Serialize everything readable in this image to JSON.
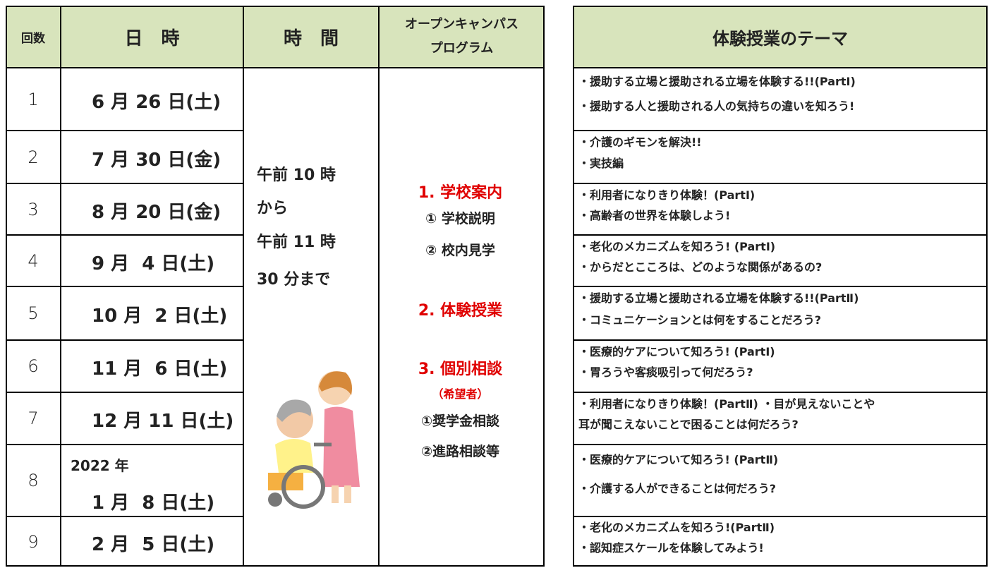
{
  "header": {
    "number": "回数",
    "date": "日　時",
    "time": "時　間",
    "program": [
      "オープンキャンパス",
      "プログラム"
    ],
    "theme": "体験授業のテーマ"
  },
  "rows": [
    {
      "number": "1",
      "date": [
        "6 月 26 日(土)"
      ],
      "themes": [
        "・援助する立場と援助される立場を体験する!!(PartⅠ)",
        "・援助する人と援助される人の気持ちの違いを知ろう!"
      ]
    },
    {
      "number": "2",
      "date": [
        "7 月 30 日(金)"
      ],
      "themes": [
        "・介護のギモンを解決!!",
        "・実技編"
      ]
    },
    {
      "number": "3",
      "date": [
        "8 月 20 日(金)"
      ],
      "themes": [
        "・利用者になりきり体験！(PartⅠ)",
        "・高齢者の世界を体験しよう!"
      ]
    },
    {
      "number": "4",
      "date": [
        "9 月  4 日(土)"
      ],
      "themes": [
        "・老化のメカニズムを知ろう! (PartⅠ)",
        "・からだとこころは、どのような関係があるの?"
      ]
    },
    {
      "number": "5",
      "date": [
        "10 月  2 日(土)"
      ],
      "themes": [
        "・援助する立場と援助される立場を体験する!!(PartⅡ)",
        "・コミュニケーションとは何をすることだろう?"
      ]
    },
    {
      "number": "6",
      "date": [
        "11 月  6 日(土)"
      ],
      "themes": [
        "・医療的ケアについて知ろう! (PartⅠ)",
        "・胃ろうや客痰吸引って何だろう?"
      ]
    },
    {
      "number": "7",
      "date": [
        "12 月 11 日(土)"
      ],
      "themes": [
        "・利用者になりきり体験！(PartⅡ) ・目が見えないことや",
        "耳が聞こえないことで困ることは何だろう?"
      ]
    },
    {
      "number": "8",
      "date": [
        "2022 年",
        "1 月  8 日(土)"
      ],
      "themes": [
        "・医療的ケアについて知ろう! (PartⅡ)",
        "・介護する人ができることは何だろう?"
      ]
    },
    {
      "number": "9",
      "date": [
        "2 月  5 日(土)"
      ],
      "themes": [
        "・老化のメカニズムを知ろう!(PartⅡ)",
        "・認知症スケールを体験してみよう!"
      ]
    }
  ],
  "time": [
    "午前 10 時",
    "から",
    "午前 11 時",
    "30 分まで"
  ],
  "program": [
    {
      "text": "1. 学校案内",
      "color": "#e00000"
    },
    {
      "text": "① 学校説明",
      "color": "#222222"
    },
    {
      "text": "② 校内見学",
      "color": "#222222"
    },
    {
      "text": "2. 体験授業",
      "color": "#e00000"
    },
    {
      "text": "3. 個別相談",
      "color": "#e00000"
    },
    {
      "text": "（希望者）",
      "color": "#e00000"
    },
    {
      "text": "①奨学金相談",
      "color": "#222222"
    },
    {
      "text": "②進路相談等",
      "color": "#222222"
    }
  ]
}
